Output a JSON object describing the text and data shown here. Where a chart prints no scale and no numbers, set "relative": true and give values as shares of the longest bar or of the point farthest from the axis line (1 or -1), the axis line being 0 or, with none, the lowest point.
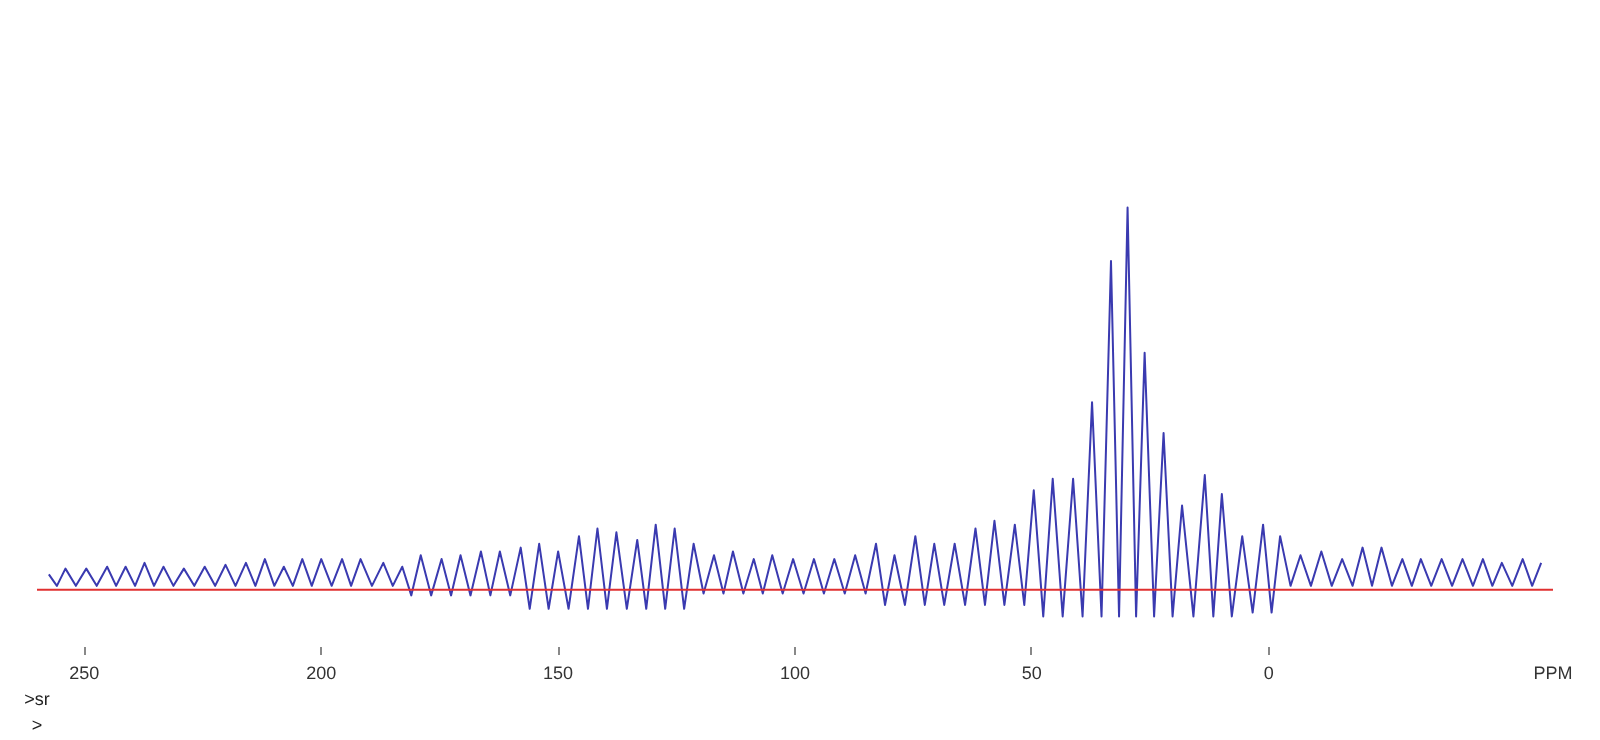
{
  "chart_data": {
    "type": "line",
    "relative": true,
    "xlabel": "PPM",
    "xlim": [
      260,
      -60
    ],
    "xticks": [
      250,
      200,
      150,
      100,
      50,
      0
    ],
    "x": [
      257.5,
      255.8,
      254.0,
      251.8,
      249.6,
      247.4,
      245.2,
      243.3,
      241.3,
      239.3,
      237.3,
      235.3,
      233.3,
      231.2,
      229.0,
      226.8,
      224.6,
      222.4,
      220.2,
      218.1,
      215.9,
      213.9,
      211.9,
      209.9,
      207.9,
      206.0,
      204.0,
      202.0,
      200.0,
      197.8,
      195.6,
      193.7,
      191.7,
      189.3,
      186.9,
      184.9,
      182.9,
      181.0,
      179.0,
      176.8,
      174.6,
      172.6,
      170.6,
      168.5,
      166.3,
      164.3,
      162.3,
      160.1,
      157.9,
      156.0,
      154.0,
      152.0,
      150.0,
      147.8,
      145.6,
      143.7,
      141.7,
      139.7,
      137.7,
      135.5,
      133.3,
      131.4,
      129.4,
      127.4,
      125.4,
      123.4,
      121.4,
      119.3,
      117.1,
      115.1,
      113.1,
      110.9,
      108.7,
      106.8,
      104.8,
      102.6,
      100.4,
      98.2,
      96.0,
      93.9,
      91.7,
      89.5,
      87.3,
      85.1,
      82.9,
      81.0,
      79.0,
      76.8,
      74.6,
      72.6,
      70.6,
      68.5,
      66.3,
      64.1,
      61.9,
      59.9,
      57.9,
      55.8,
      53.6,
      51.6,
      49.6,
      47.6,
      45.6,
      43.5,
      41.3,
      39.3,
      37.3,
      35.3,
      33.3,
      31.6,
      29.8,
      28.0,
      26.2,
      24.2,
      22.2,
      20.3,
      18.3,
      15.9,
      13.5,
      11.7,
      9.9,
      7.8,
      5.6,
      3.4,
      1.2,
      -0.6,
      -2.4,
      -4.6,
      -6.7,
      -8.9,
      -11.1,
      -13.3,
      -15.5,
      -17.7,
      -19.8,
      -21.8,
      -23.8,
      -26.0,
      -28.2,
      -30.2,
      -32.1,
      -34.3,
      -36.5,
      -38.7,
      -40.9,
      -43.1,
      -45.2,
      -47.2,
      -49.2,
      -51.4,
      -53.6,
      -55.6,
      -57.5
    ],
    "series": [
      {
        "color": "#3a3ab0",
        "values": [
          0.04,
          0.01,
          0.055,
          0.01,
          0.055,
          0.01,
          0.06,
          0.01,
          0.06,
          0.01,
          0.07,
          0.01,
          0.06,
          0.01,
          0.055,
          0.01,
          0.06,
          0.01,
          0.065,
          0.01,
          0.07,
          0.01,
          0.08,
          0.01,
          0.06,
          0.01,
          0.08,
          0.01,
          0.08,
          0.01,
          0.08,
          0.01,
          0.08,
          0.01,
          0.07,
          0.01,
          0.06,
          -0.015,
          0.09,
          -0.015,
          0.08,
          -0.015,
          0.09,
          -0.015,
          0.1,
          -0.015,
          0.1,
          -0.015,
          0.11,
          -0.05,
          0.12,
          -0.05,
          0.1,
          -0.05,
          0.14,
          -0.05,
          0.16,
          -0.05,
          0.15,
          -0.05,
          0.13,
          -0.05,
          0.17,
          -0.05,
          0.16,
          -0.05,
          0.12,
          -0.01,
          0.09,
          -0.01,
          0.1,
          -0.01,
          0.08,
          -0.01,
          0.09,
          -0.01,
          0.08,
          -0.01,
          0.08,
          -0.01,
          0.08,
          -0.01,
          0.09,
          -0.01,
          0.12,
          -0.04,
          0.09,
          -0.04,
          0.14,
          -0.04,
          0.12,
          -0.04,
          0.12,
          -0.04,
          0.16,
          -0.04,
          0.18,
          -0.04,
          0.17,
          -0.04,
          0.26,
          -0.07,
          0.29,
          -0.07,
          0.29,
          -0.07,
          0.49,
          -0.07,
          0.86,
          -0.07,
          1.0,
          -0.07,
          0.62,
          -0.07,
          0.41,
          -0.07,
          0.22,
          -0.07,
          0.3,
          -0.07,
          0.25,
          -0.07,
          0.14,
          -0.06,
          0.17,
          -0.06,
          0.14,
          0.01,
          0.09,
          0.01,
          0.1,
          0.01,
          0.08,
          0.01,
          0.11,
          0.01,
          0.11,
          0.01,
          0.08,
          0.01,
          0.08,
          0.01,
          0.08,
          0.01,
          0.08,
          0.01,
          0.08,
          0.01,
          0.07,
          0.01,
          0.08,
          0.01,
          0.07
        ]
      }
    ],
    "ref_lines": [
      {
        "axis": "y",
        "value": 0,
        "color": "#e03030"
      }
    ],
    "annotations": [
      ">sr",
      ">"
    ]
  }
}
